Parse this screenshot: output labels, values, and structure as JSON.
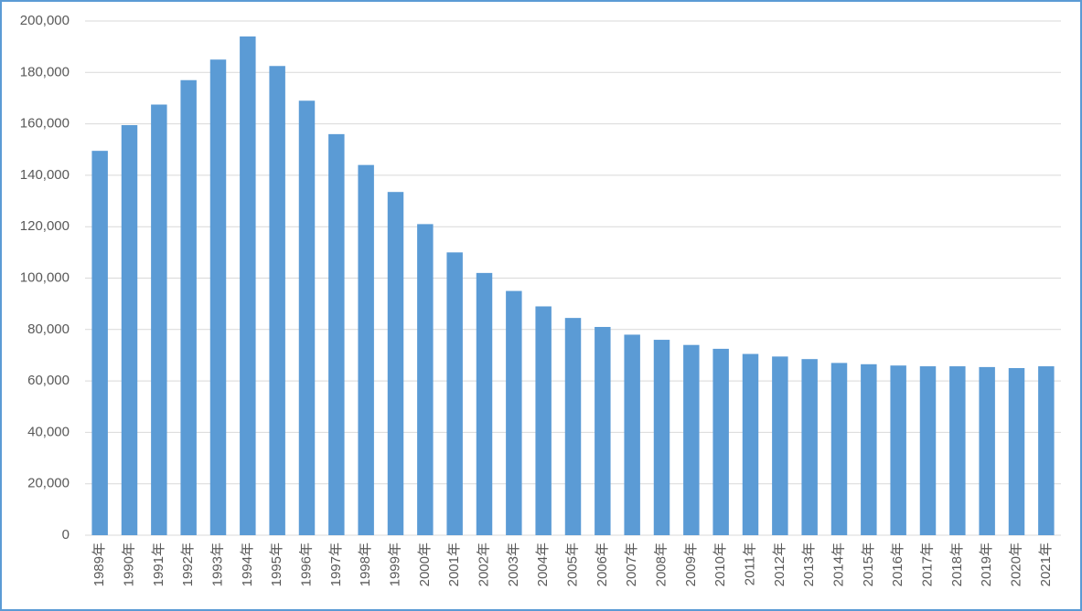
{
  "chart_data": {
    "type": "bar",
    "categories": [
      "1989年",
      "1990年",
      "1991年",
      "1992年",
      "1993年",
      "1994年",
      "1995年",
      "1996年",
      "1997年",
      "1998年",
      "1999年",
      "2000年",
      "2001年",
      "2002年",
      "2003年",
      "2004年",
      "2005年",
      "2006年",
      "2007年",
      "2008年",
      "2009年",
      "2010年",
      "2011年",
      "2012年",
      "2013年",
      "2014年",
      "2015年",
      "2016年",
      "2017年",
      "2018年",
      "2019年",
      "2020年",
      "2021年"
    ],
    "values": [
      149500,
      159500,
      167500,
      177000,
      185000,
      194000,
      182500,
      169000,
      156000,
      144000,
      133500,
      121000,
      110000,
      102000,
      95000,
      89000,
      84500,
      81000,
      78000,
      76000,
      74000,
      72500,
      70500,
      69500,
      68500,
      67000,
      66500,
      66000,
      65700,
      65700,
      65400,
      65000,
      65700
    ],
    "color": "#5b9bd5",
    "ylim": [
      0,
      200000
    ],
    "yticks": [
      0,
      {
        "value": 20000,
        "label": "20,000"
      },
      {
        "value": 40000,
        "label": "40,000"
      },
      {
        "value": 60000,
        "label": "60,000"
      },
      {
        "value": 80000,
        "label": "80,000"
      },
      {
        "value": 100000,
        "label": "100,000"
      },
      {
        "value": 120000,
        "label": "120,000"
      },
      {
        "value": 140000,
        "label": "140,000"
      },
      {
        "value": 160000,
        "label": "160,000"
      },
      {
        "value": 180000,
        "label": "180,000"
      },
      {
        "value": 200000,
        "label": "200,000"
      }
    ],
    "grid": true
  }
}
